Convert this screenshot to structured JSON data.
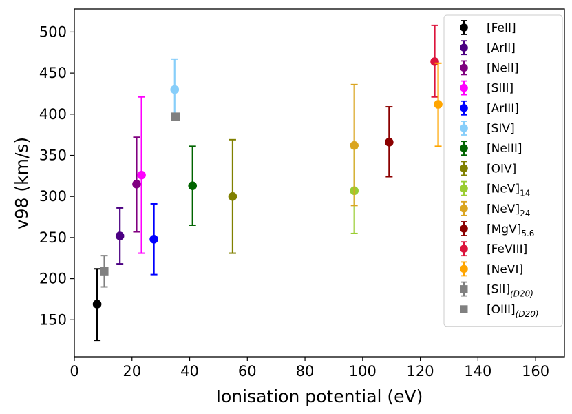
{
  "chart_data": {
    "type": "scatter",
    "title": "",
    "xlabel": "Ionisation potential (eV)",
    "ylabel": "v98 (km/s)",
    "xlim": [
      0,
      170
    ],
    "ylim": [
      105,
      528
    ],
    "xticks": [
      0,
      20,
      40,
      60,
      80,
      100,
      120,
      140,
      160
    ],
    "yticks": [
      150,
      200,
      250,
      300,
      350,
      400,
      450,
      500
    ],
    "grid": false,
    "legend_position": "top-right",
    "series": [
      {
        "name": "[FeII]",
        "sub": "",
        "color": "#000000",
        "marker": "circle",
        "x": 7.9,
        "y": 169,
        "yerr_low": 44,
        "yerr_high": 43
      },
      {
        "name": "[ArII]",
        "sub": "",
        "color": "#4b0082",
        "marker": "circle",
        "x": 15.8,
        "y": 252,
        "yerr_low": 34,
        "yerr_high": 34
      },
      {
        "name": "[NeII]",
        "sub": "",
        "color": "#800080",
        "marker": "circle",
        "x": 21.6,
        "y": 315,
        "yerr_low": 58,
        "yerr_high": 57
      },
      {
        "name": "[SIII]",
        "sub": "",
        "color": "#ff00ff",
        "marker": "circle",
        "x": 23.3,
        "y": 326,
        "yerr_low": 95,
        "yerr_high": 95
      },
      {
        "name": "[ArIII]",
        "sub": "",
        "color": "#0000ff",
        "marker": "circle",
        "x": 27.6,
        "y": 248,
        "yerr_low": 43,
        "yerr_high": 43
      },
      {
        "name": "[SIV]",
        "sub": "",
        "color": "#87cefa",
        "marker": "circle",
        "x": 34.8,
        "y": 430,
        "yerr_low": 37,
        "yerr_high": 37
      },
      {
        "name": "[NeIII]",
        "sub": "",
        "color": "#006400",
        "marker": "circle",
        "x": 41.0,
        "y": 313,
        "yerr_low": 48,
        "yerr_high": 48
      },
      {
        "name": "[OIV]",
        "sub": "",
        "color": "#808000",
        "marker": "circle",
        "x": 54.9,
        "y": 300,
        "yerr_low": 69,
        "yerr_high": 69
      },
      {
        "name": "[NeV]",
        "sub": "14",
        "color": "#9acd32",
        "marker": "circle",
        "x": 97.1,
        "y": 307,
        "yerr_low": 52,
        "yerr_high": 52
      },
      {
        "name": "[NeV]",
        "sub": "24",
        "color": "#daa520",
        "marker": "circle",
        "x": 97.1,
        "y": 362,
        "yerr_low": 73,
        "yerr_high": 74
      },
      {
        "name": "[MgV]",
        "sub": "5.6",
        "color": "#8b0000",
        "marker": "circle",
        "x": 109.2,
        "y": 366,
        "yerr_low": 42,
        "yerr_high": 43
      },
      {
        "name": "[FeVIII]",
        "sub": "",
        "color": "#dc143c",
        "marker": "circle",
        "x": 125.0,
        "y": 464,
        "yerr_low": 43,
        "yerr_high": 44
      },
      {
        "name": "[NeVI]",
        "sub": "",
        "color": "#ffa500",
        "marker": "circle",
        "x": 126.2,
        "y": 412,
        "yerr_low": 51,
        "yerr_high": 50
      },
      {
        "name": "[SII]",
        "sub": "(D20)",
        "color": "#808080",
        "marker": "square",
        "x": 10.4,
        "y": 209,
        "yerr_low": 19,
        "yerr_high": 19
      },
      {
        "name": "[OIII]",
        "sub": "(D20)",
        "color": "#808080",
        "marker": "square",
        "x": 35.1,
        "y": 397,
        "yerr_low": 0,
        "yerr_high": 0
      }
    ]
  }
}
